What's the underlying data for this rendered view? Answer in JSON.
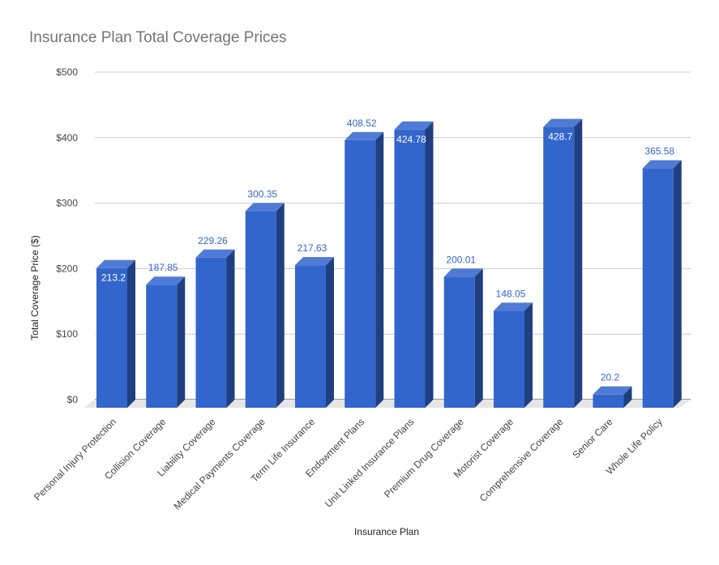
{
  "chart_data": {
    "type": "bar",
    "title": "Insurance Plan Total Coverage Prices",
    "xlabel": "Insurance Plan",
    "ylabel": "Total Coverage Price ($)",
    "ylim": [
      0,
      500
    ],
    "yticks": [
      0,
      100,
      200,
      300,
      400,
      500
    ],
    "ytick_labels": [
      "$0",
      "$100",
      "$200",
      "$300",
      "$400",
      "$500"
    ],
    "grid": true,
    "style": "3d",
    "categories": [
      "Personal Injury Protection",
      "Collision Coverage",
      "Liability Coverage",
      "Medical Payments Coverage",
      "Term Life Insurance",
      "Endowment Plans",
      "Unit Linked Insurance Plans",
      "Premium Drug Coverage",
      "Motorist Coverage",
      "Comprehensive Coverage",
      "Senior Care",
      "Whole Life Policy"
    ],
    "values": [
      213.2,
      187.85,
      229.26,
      300.35,
      217.63,
      408.52,
      424.78,
      200.01,
      148.05,
      428.7,
      20.2,
      365.58
    ],
    "value_labels": [
      "213.2",
      "187.85",
      "229.26",
      "300.35",
      "217.63",
      "408.52",
      "424.78",
      "200.01",
      "148.05",
      "428.7",
      "20.2",
      "365.58"
    ],
    "colors": {
      "bar_front": "#3366cc",
      "bar_top": "#4f7bd6",
      "bar_side": "#1f3f80",
      "label_outside": "#3366cc",
      "label_inside": "#ffffff",
      "grid": "#cccccc",
      "floor": "#e6e6e6"
    }
  }
}
